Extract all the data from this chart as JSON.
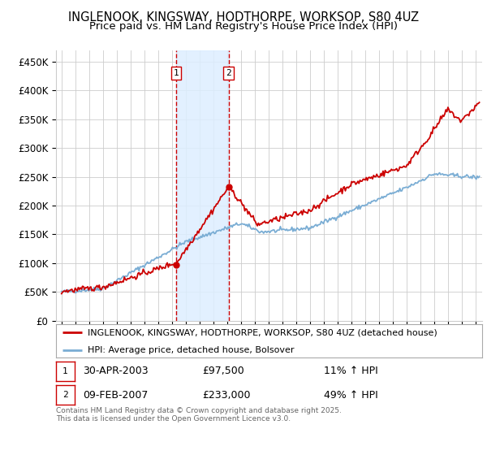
{
  "title": "INGLENOOK, KINGSWAY, HODTHORPE, WORKSOP, S80 4UZ",
  "subtitle": "Price paid vs. HM Land Registry's House Price Index (HPI)",
  "ylabel_ticks": [
    "£0",
    "£50K",
    "£100K",
    "£150K",
    "£200K",
    "£250K",
    "£300K",
    "£350K",
    "£400K",
    "£450K"
  ],
  "ytick_values": [
    0,
    50000,
    100000,
    150000,
    200000,
    250000,
    300000,
    350000,
    400000,
    450000
  ],
  "ylim": [
    0,
    470000
  ],
  "xlim_start": 1994.6,
  "xlim_end": 2025.5,
  "purchase1_x": 2003.33,
  "purchase1_y": 97500,
  "purchase2_x": 2007.11,
  "purchase2_y": 233000,
  "purchase1_date": "30-APR-2003",
  "purchase1_price": "£97,500",
  "purchase1_hpi": "11% ↑ HPI",
  "purchase2_date": "09-FEB-2007",
  "purchase2_price": "£233,000",
  "purchase2_hpi": "49% ↑ HPI",
  "red_line_color": "#cc0000",
  "blue_line_color": "#7aadd4",
  "shade_color": "#ddeeff",
  "vline_color": "#cc0000",
  "grid_color": "#cccccc",
  "bg_color": "#ffffff",
  "legend1": "INGLENOOK, KINGSWAY, HODTHORPE, WORKSOP, S80 4UZ (detached house)",
  "legend2": "HPI: Average price, detached house, Bolsover",
  "footer": "Contains HM Land Registry data © Crown copyright and database right 2025.\nThis data is licensed under the Open Government Licence v3.0.",
  "title_fontsize": 10.5,
  "subtitle_fontsize": 9.5
}
